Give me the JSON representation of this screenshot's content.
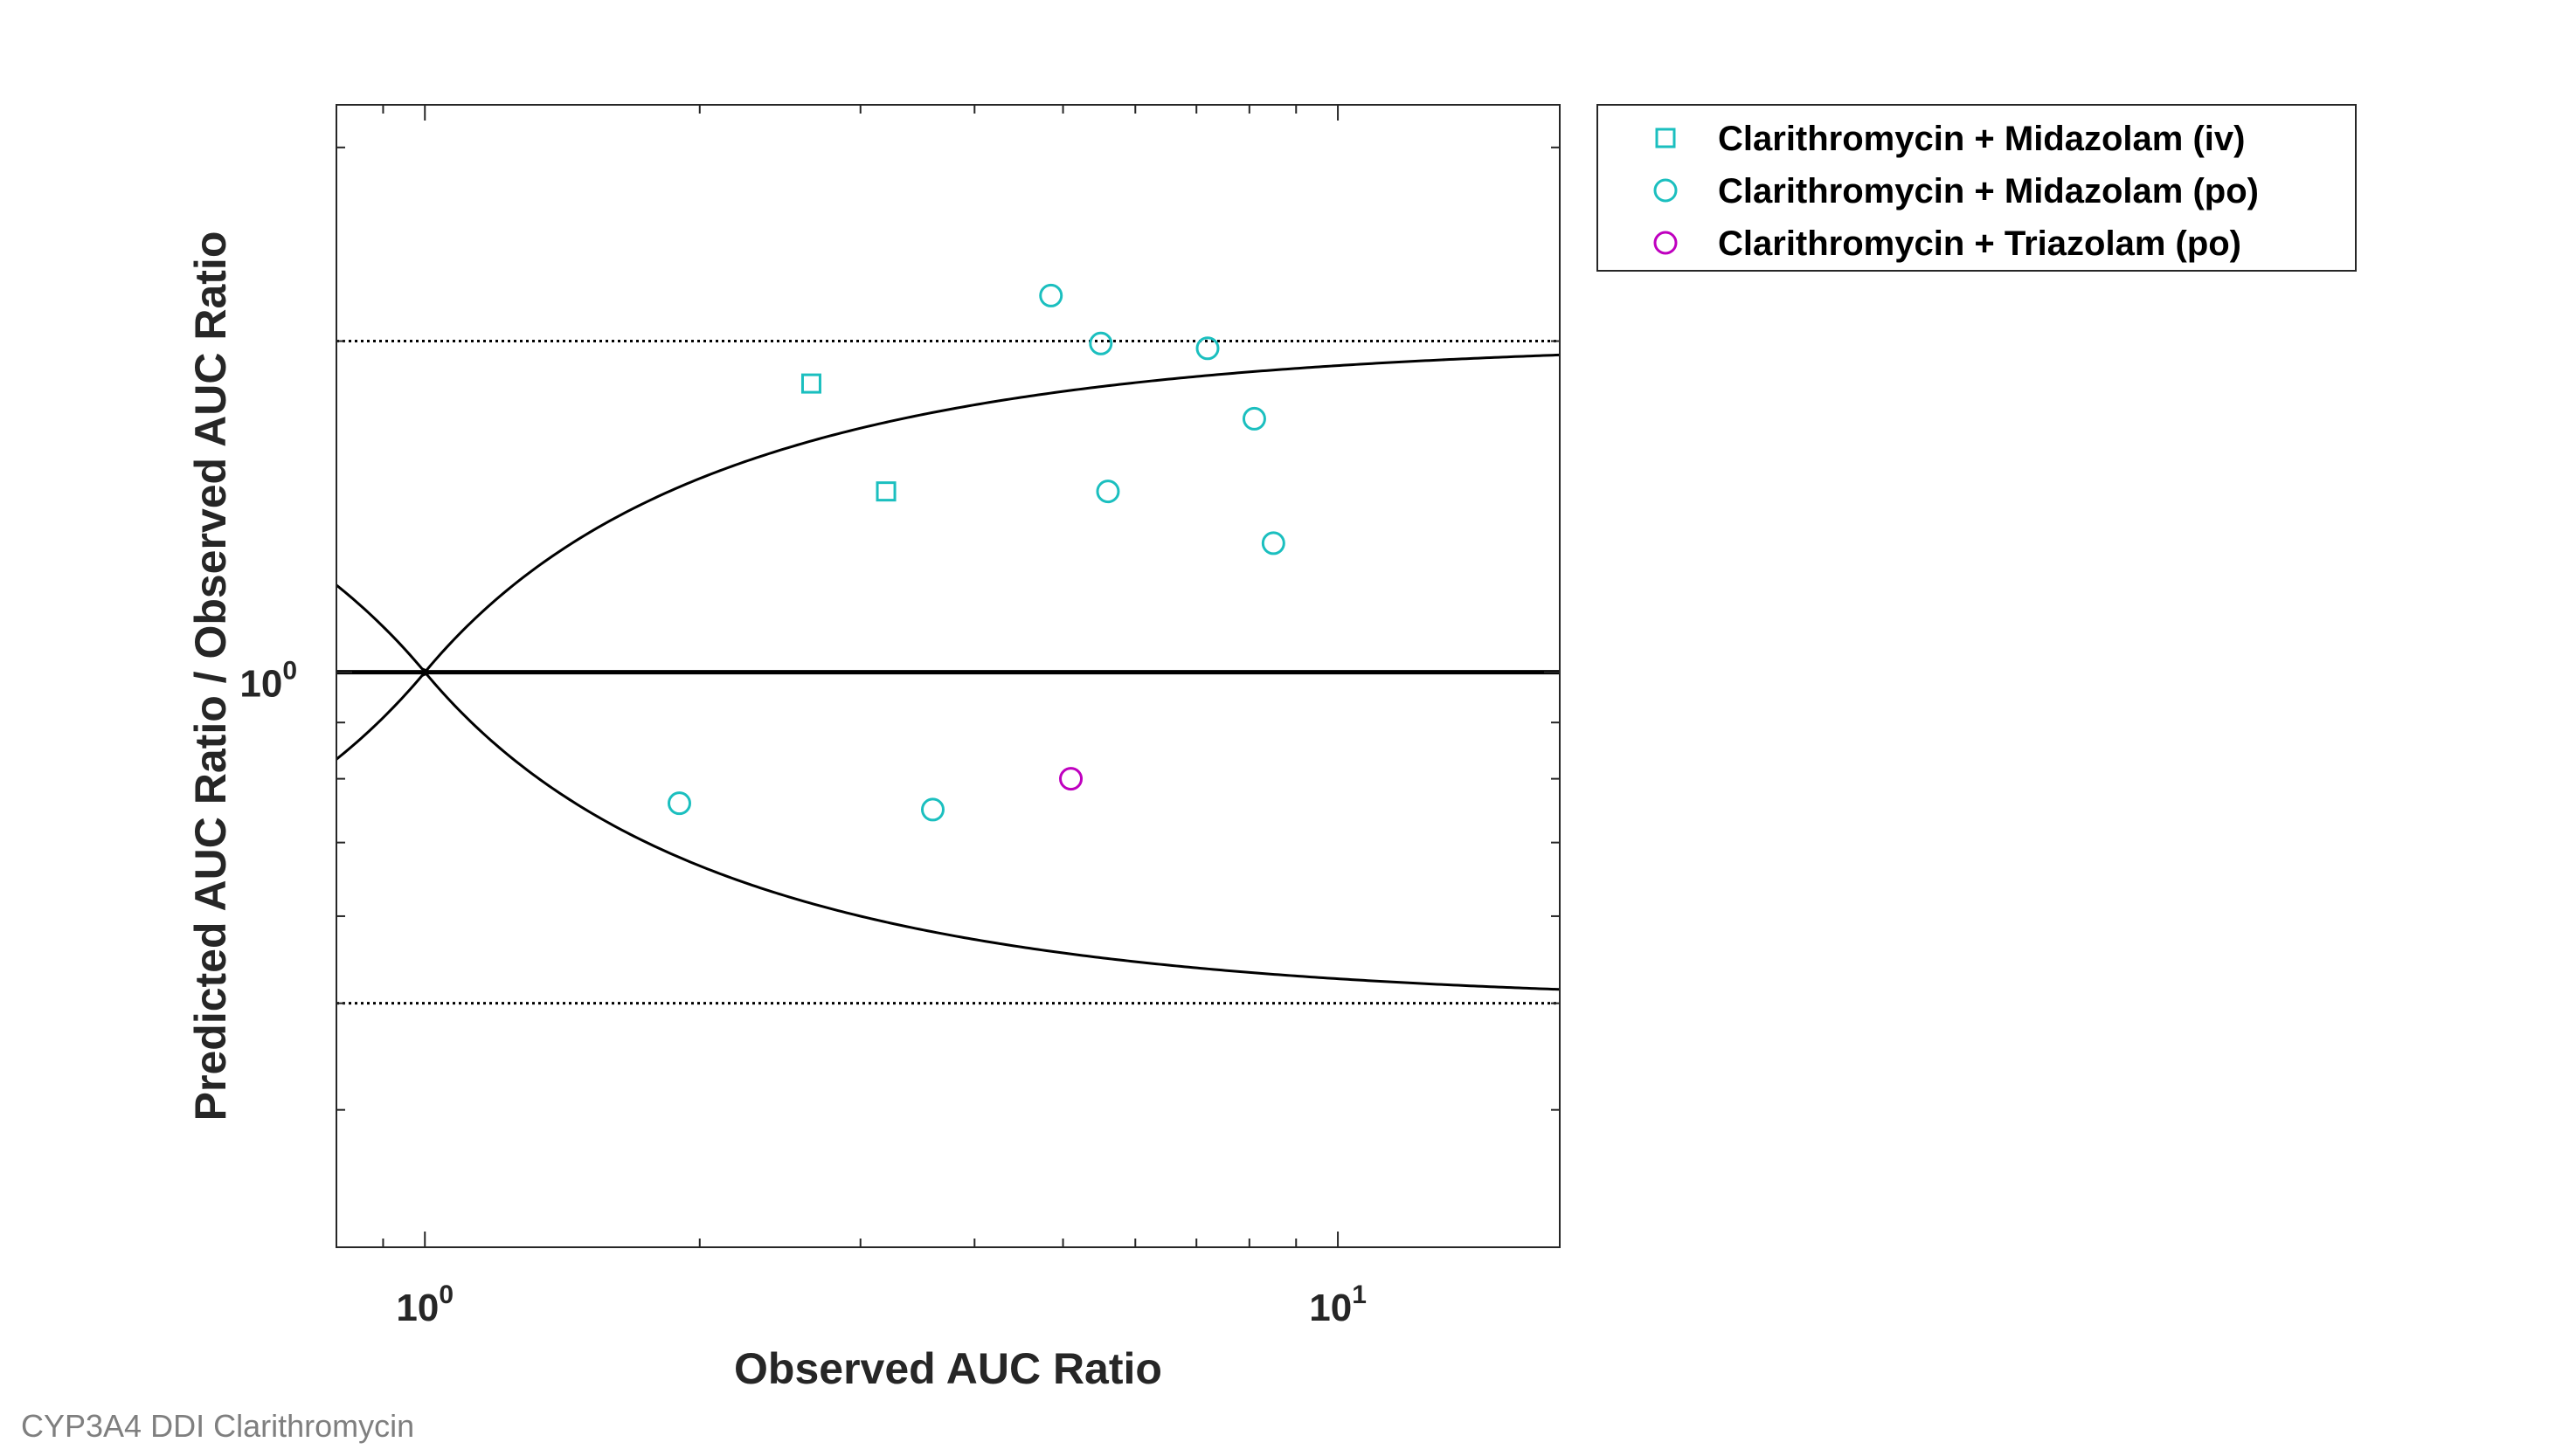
{
  "caption": "CYP3A4 DDI Clarithromycin",
  "chart_data": {
    "type": "scatter",
    "xlabel": "Observed AUC Ratio",
    "ylabel": "Predicted AUC Ratio / Observed AUC Ratio",
    "xscale": "log",
    "yscale": "log",
    "xlim": [
      0.8,
      17.5
    ],
    "ylim": [
      0.3,
      3.28
    ],
    "x_ticks": [
      {
        "base": "10",
        "exp": "0",
        "value": 1
      },
      {
        "base": "10",
        "exp": "1",
        "value": 10
      }
    ],
    "y_ticks": [
      {
        "base": "10",
        "exp": "0",
        "value": 1
      }
    ],
    "grid": false,
    "legend_position": "outside-top-right",
    "reference_lines": {
      "unity": 1,
      "upper_limit": 2,
      "lower_limit": 0.5,
      "guest_limit_delta": 1
    },
    "series": [
      {
        "name": "Clarithromycin + Midazolam (iv)",
        "marker": "square",
        "color": "#1bbfbf",
        "points": [
          {
            "x": 2.65,
            "y": 1.83
          },
          {
            "x": 3.2,
            "y": 1.46
          }
        ]
      },
      {
        "name": "Clarithromycin + Midazolam (po)",
        "marker": "circle",
        "color": "#1bbfbf",
        "points": [
          {
            "x": 1.9,
            "y": 0.76
          },
          {
            "x": 3.6,
            "y": 0.75
          },
          {
            "x": 4.85,
            "y": 2.2
          },
          {
            "x": 5.5,
            "y": 1.99
          },
          {
            "x": 5.6,
            "y": 1.46
          },
          {
            "x": 7.2,
            "y": 1.97
          },
          {
            "x": 8.1,
            "y": 1.7
          },
          {
            "x": 8.5,
            "y": 1.31
          }
        ]
      },
      {
        "name": "Clarithromycin + Triazolam (po)",
        "marker": "circle",
        "color": "#bf00bf",
        "points": [
          {
            "x": 5.1,
            "y": 0.8
          }
        ]
      }
    ]
  }
}
